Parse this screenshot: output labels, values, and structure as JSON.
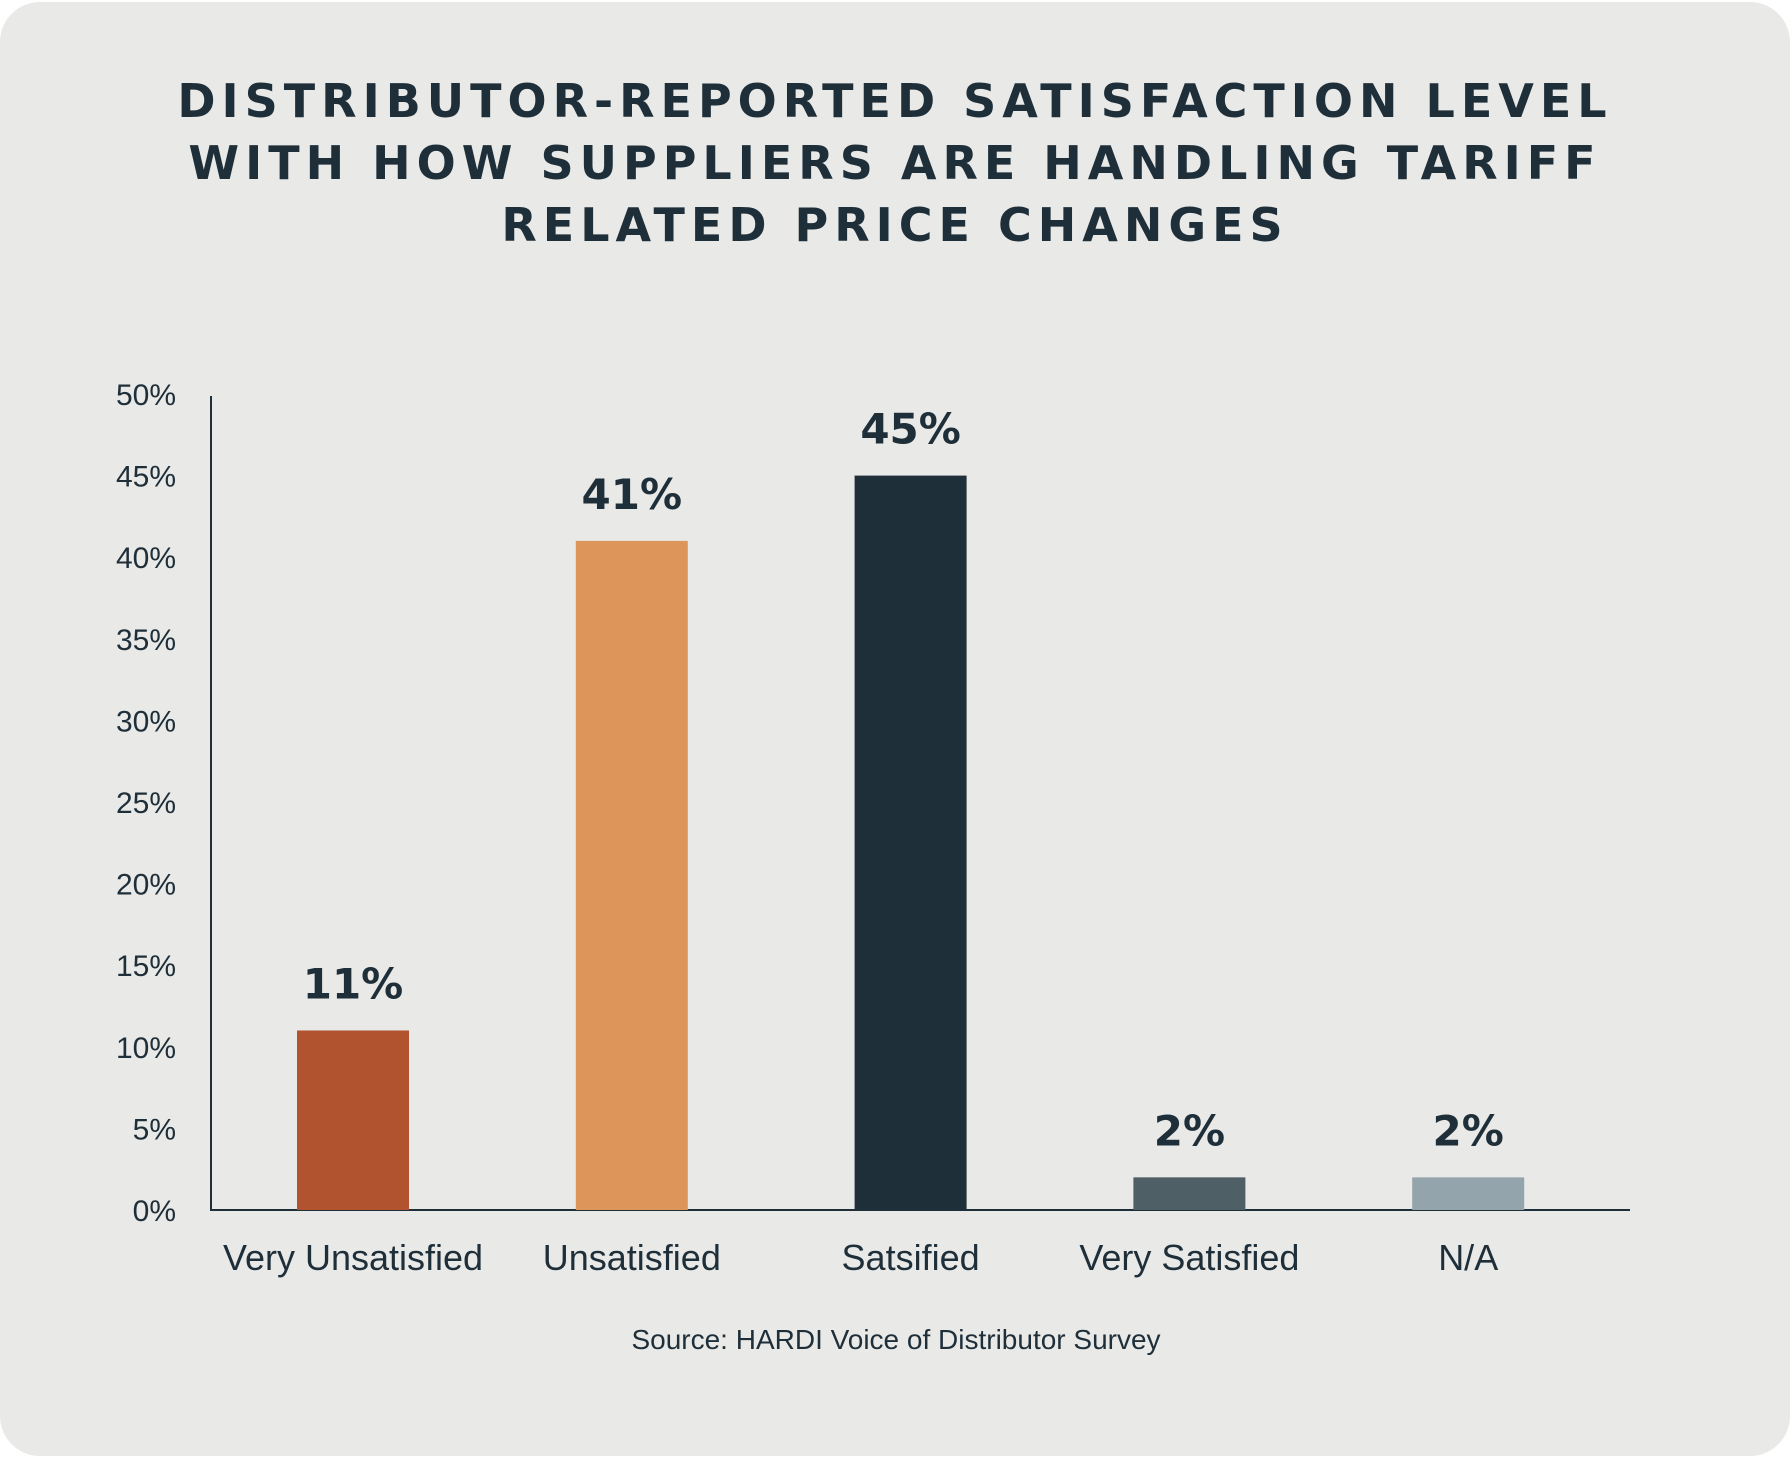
{
  "chart_data": {
    "type": "bar",
    "title_lines": [
      "DISTRIBUTOR-REPORTED SATISFACTION LEVEL",
      "WITH HOW SUPPLIERS ARE HANDLING TARIFF",
      "RELATED PRICE CHANGES"
    ],
    "categories": [
      "Very Unsatisfied",
      "Unsatisfied",
      "Satsified",
      "Very Satisfied",
      "N/A"
    ],
    "values": [
      11,
      41,
      45,
      2,
      2
    ],
    "data_labels": [
      "11%",
      "41%",
      "45%",
      "2%",
      "2%"
    ],
    "colors": [
      "#b0532e",
      "#dd955a",
      "#1e2f3a",
      "#4f5f66",
      "#94a4ad"
    ],
    "ylim": [
      0,
      50
    ],
    "yticks": [
      0,
      5,
      10,
      15,
      20,
      25,
      30,
      35,
      40,
      45,
      50
    ],
    "ytick_labels": [
      "0%",
      "5%",
      "10%",
      "15%",
      "20%",
      "25%",
      "30%",
      "35%",
      "40%",
      "45%",
      "50%"
    ],
    "xlabel": "",
    "ylabel": "",
    "grid": false,
    "source": "Source: HARDI Voice of Distributor Survey"
  }
}
